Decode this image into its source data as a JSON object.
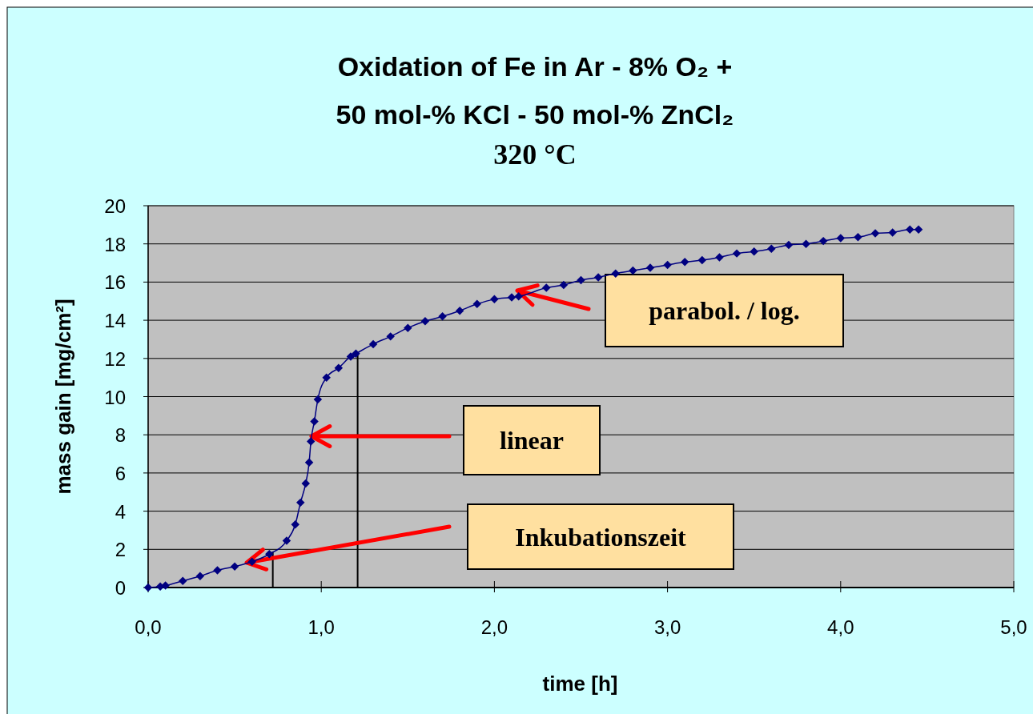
{
  "chart_data": {
    "type": "line",
    "title": "Oxidation of Fe in Ar - 8% O₂ +\n50 mol-% KCl - 50 mol-% ZnCl₂",
    "subtitle": "320 °C",
    "xlabel": "time [h]",
    "ylabel": "mass gain [mg/cm²]",
    "x": [
      0,
      0.07,
      0.1,
      0.2,
      0.3,
      0.4,
      0.5,
      0.6,
      0.7,
      0.8,
      0.85,
      0.88,
      0.91,
      0.93,
      0.94,
      0.96,
      0.98,
      1.03,
      1.1,
      1.17,
      1.2,
      1.3,
      1.4,
      1.5,
      1.6,
      1.7,
      1.8,
      1.9,
      2.0,
      2.1,
      2.14,
      2.3,
      2.4,
      2.5,
      2.6,
      2.7,
      2.8,
      2.9,
      3.0,
      3.1,
      3.2,
      3.3,
      3.4,
      3.5,
      3.6,
      3.7,
      3.8,
      3.9,
      4.0,
      4.1,
      4.2,
      4.3,
      4.4,
      4.45
    ],
    "series": [
      {
        "color": "#000080",
        "values": [
          0,
          0.05,
          0.1,
          0.35,
          0.6,
          0.9,
          1.1,
          1.35,
          1.75,
          2.45,
          3.3,
          4.45,
          5.45,
          6.55,
          7.65,
          8.7,
          9.85,
          11.0,
          11.5,
          12.1,
          12.25,
          12.75,
          13.15,
          13.6,
          13.95,
          14.2,
          14.5,
          14.85,
          15.1,
          15.2,
          15.25,
          15.7,
          15.85,
          16.1,
          16.25,
          16.45,
          16.6,
          16.75,
          16.9,
          17.05,
          17.15,
          17.3,
          17.5,
          17.6,
          17.75,
          17.95,
          18.0,
          18.15,
          18.3,
          18.35,
          18.55,
          18.6,
          18.75,
          18.75
        ]
      }
    ],
    "xlim": [
      0,
      5
    ],
    "xticks": [
      {
        "value": 0,
        "label": "0,0"
      },
      {
        "value": 1,
        "label": "1,0"
      },
      {
        "value": 2,
        "label": "2,0"
      },
      {
        "value": 3,
        "label": "3,0"
      },
      {
        "value": 4,
        "label": "4,0"
      },
      {
        "value": 5,
        "label": "5,0"
      }
    ],
    "ylim": [
      0,
      20
    ],
    "yticks": [
      0,
      2,
      4,
      6,
      8,
      10,
      12,
      14,
      16,
      18,
      20
    ],
    "grid": "y",
    "marker": "diamond",
    "line_style": "solid",
    "ref_lines": [
      {
        "axis": "x",
        "value": 0.72,
        "color": "#000000"
      },
      {
        "axis": "x",
        "value": 1.21,
        "color": "#000000"
      }
    ],
    "annotations": [
      "parabol. / log.",
      "linear",
      "Inkubationszeit"
    ]
  }
}
